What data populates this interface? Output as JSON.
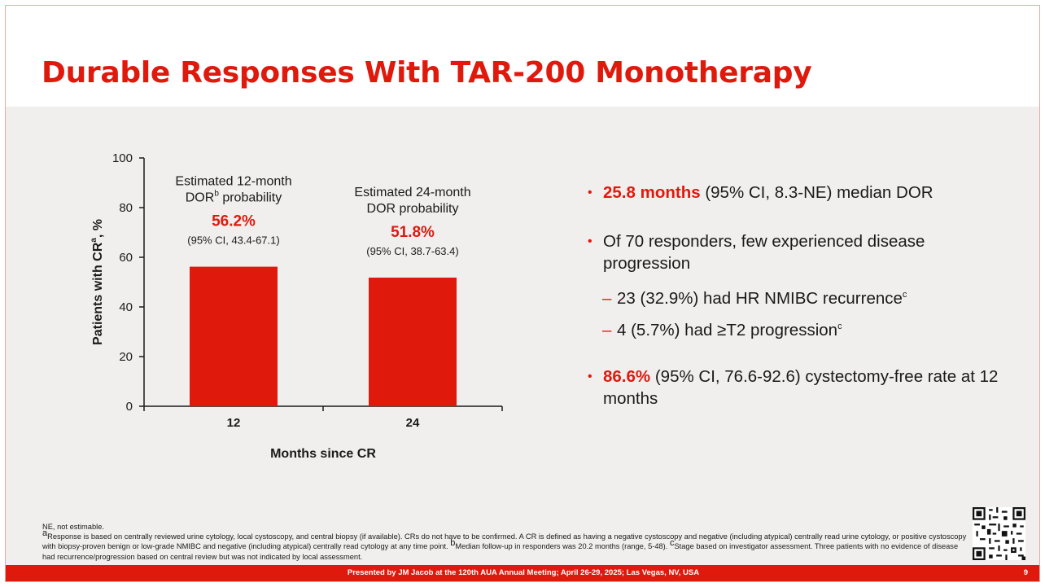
{
  "slide": {
    "title": "Durable Responses With TAR-200 Monotherapy",
    "page_number": "9"
  },
  "chart_data": {
    "type": "bar",
    "categories": [
      "12",
      "24"
    ],
    "values": [
      56.2,
      51.8
    ],
    "xlabel": "Months since CR",
    "ylabel": "Patients with CR",
    "ylabel_sup": "a",
    "ylabel_suffix": ", %",
    "ylim": [
      0,
      100
    ],
    "yticks": [
      0,
      20,
      40,
      60,
      80,
      100
    ],
    "bar_color": "#e0190d",
    "annotations": [
      {
        "line1": "Estimated 12-month",
        "line2_main": "DOR",
        "line2_sup": "b",
        "line2_rest": " probability",
        "value_label": "56.2%",
        "ci_label": "(95% CI, 43.4-67.1)"
      },
      {
        "line1": "Estimated 24-month",
        "line2_main": "DOR probability",
        "line2_sup": "",
        "line2_rest": "",
        "value_label": "51.8%",
        "ci_label": "(95% CI, 38.7-63.4)"
      }
    ]
  },
  "bullets": {
    "b1": {
      "highlight": "25.8 months",
      "text": " (95% CI, 8.3-NE) median DOR"
    },
    "b2": {
      "text": "Of 70 responders, few experienced disease progression"
    },
    "sub1": {
      "text": "23 (32.9%) had HR NMIBC recurrence",
      "sup": "c"
    },
    "sub2": {
      "text": "4 (5.7%) had ≥T2 progression",
      "sup": "c"
    },
    "b3": {
      "highlight": "86.6%",
      "text": " (95% CI, 76.6-92.6) cystectomy-free rate at 12 months"
    }
  },
  "footnotes": {
    "ne": "NE, not estimable.",
    "note_a_sup": "a",
    "note_a": "Response is based on centrally reviewed urine cytology, local cystoscopy, and central biopsy (if available). CRs do not have to be confirmed. A CR is defined as having a negative cystoscopy and negative (including atypical) centrally read urine cytology, or positive cystoscopy with biopsy-proven benign or low-grade NMIBC and negative (including atypical) centrally read cytology at any time point. ",
    "note_b_sup": "b",
    "note_b": "Median follow-up in responders was 20.2 months (range, 5-48). ",
    "note_c_sup": "c",
    "note_c": "Stage based on investigator assessment. Three patients with no evidence of disease had recurrence/progression based on central review but was not indicated by local assessment."
  },
  "footer": {
    "text": "Presented by JM Jacob at the 120th AUA Annual Meeting; April 26-29, 2025; Las Vegas, NV, USA"
  },
  "icons": {
    "qr": "qr-code-icon",
    "bullet": "bullet-dot-icon",
    "dash": "dash-icon"
  },
  "colors": {
    "accent": "#e0190d",
    "background": "#f0efee"
  }
}
